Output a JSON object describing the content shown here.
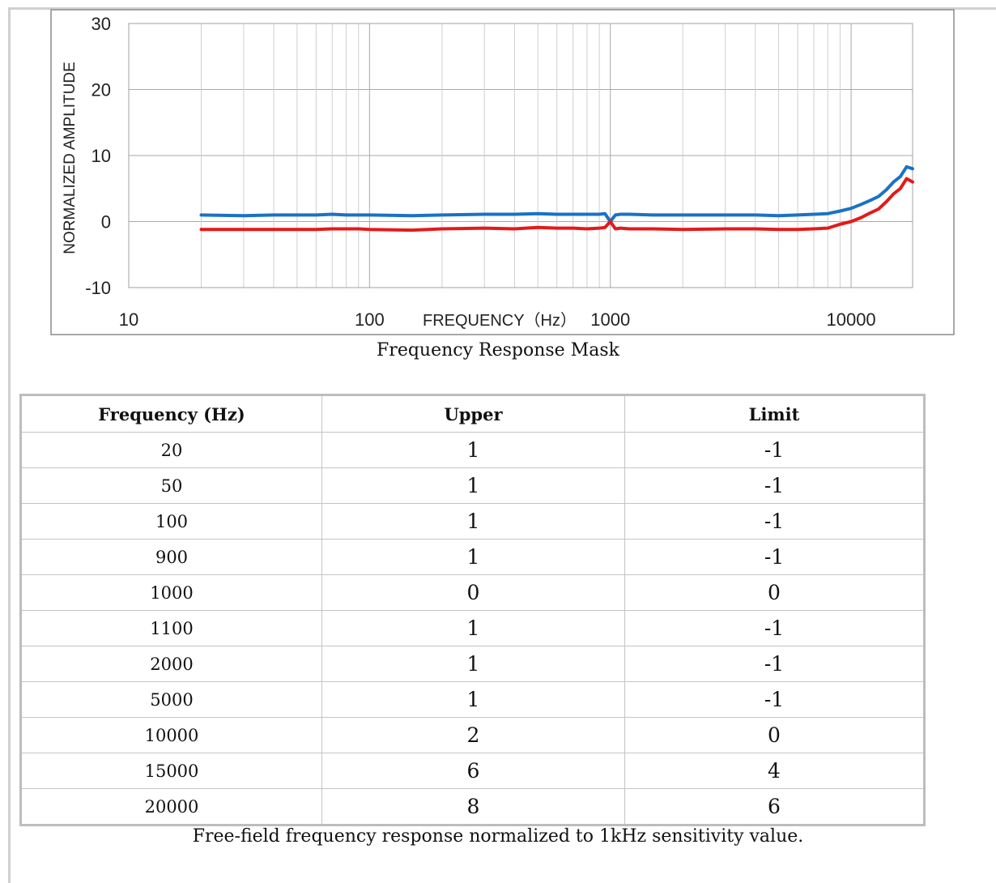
{
  "chart_data": {
    "type": "line",
    "ylabel": "NORMALIZED AMPLITUDE",
    "xlabel": "FREQUENCY（Hz）",
    "xscale": "log",
    "xlim": [
      10,
      18000
    ],
    "ylim": [
      -10,
      30
    ],
    "yticks": [
      "30",
      "20",
      "10",
      "0",
      "-10"
    ],
    "xticks": [
      "10",
      "100",
      "1000",
      "10000"
    ],
    "grid": true,
    "colors": {
      "upper": "#1a72c4",
      "lower": "#e41a1a"
    },
    "series": [
      {
        "color": "#1a72c4",
        "x": [
          20,
          30,
          40,
          50,
          60,
          70,
          80,
          90,
          100,
          150,
          200,
          300,
          400,
          500,
          600,
          700,
          800,
          900,
          950,
          1000,
          1050,
          1100,
          1200,
          1500,
          2000,
          3000,
          4000,
          5000,
          6000,
          7000,
          8000,
          9000,
          10000,
          11000,
          12000,
          13000,
          14000,
          15000,
          16000,
          17000,
          18000
        ],
        "y": [
          1.0,
          0.9,
          1.0,
          1.0,
          1.0,
          1.1,
          1.0,
          1.0,
          1.0,
          0.9,
          1.0,
          1.1,
          1.1,
          1.2,
          1.1,
          1.1,
          1.1,
          1.1,
          1.2,
          0.0,
          1.0,
          1.1,
          1.1,
          1.0,
          1.0,
          1.0,
          1.0,
          0.9,
          1.0,
          1.1,
          1.2,
          1.6,
          2.0,
          2.6,
          3.2,
          3.8,
          4.8,
          6.0,
          6.8,
          8.3,
          8.0
        ]
      },
      {
        "color": "#e41a1a",
        "x": [
          20,
          30,
          40,
          50,
          60,
          70,
          80,
          90,
          100,
          150,
          200,
          300,
          400,
          500,
          600,
          700,
          800,
          900,
          950,
          1000,
          1050,
          1100,
          1200,
          1500,
          2000,
          3000,
          4000,
          5000,
          6000,
          7000,
          8000,
          9000,
          10000,
          11000,
          12000,
          13000,
          14000,
          15000,
          16000,
          17000,
          18000
        ],
        "y": [
          -1.2,
          -1.2,
          -1.2,
          -1.2,
          -1.2,
          -1.1,
          -1.1,
          -1.1,
          -1.2,
          -1.3,
          -1.1,
          -1.0,
          -1.1,
          -0.9,
          -1.0,
          -1.0,
          -1.1,
          -1.0,
          -0.9,
          0.0,
          -1.1,
          -1.0,
          -1.1,
          -1.1,
          -1.2,
          -1.1,
          -1.1,
          -1.2,
          -1.2,
          -1.1,
          -1.0,
          -0.4,
          0.0,
          0.6,
          1.3,
          1.9,
          3.0,
          4.2,
          5.0,
          6.5,
          6.0
        ]
      }
    ],
    "title": "Frequency Response Mask"
  },
  "table": {
    "headers": [
      "Frequency (Hz)",
      "Upper",
      "Limit"
    ],
    "rows": [
      [
        "20",
        "1",
        "-1"
      ],
      [
        "50",
        "1",
        "-1"
      ],
      [
        "100",
        "1",
        "-1"
      ],
      [
        "900",
        "1",
        "-1"
      ],
      [
        "1000",
        "0",
        "0"
      ],
      [
        "1100",
        "1",
        "-1"
      ],
      [
        "2000",
        "1",
        "-1"
      ],
      [
        "5000",
        "1",
        "-1"
      ],
      [
        "10000",
        "2",
        "0"
      ],
      [
        "15000",
        "6",
        "4"
      ],
      [
        "20000",
        "8",
        "6"
      ]
    ]
  },
  "captions": {
    "chart": "Frequency Response Mask",
    "table": "Free-field frequency response normalized to 1kHz sensitivity value."
  }
}
